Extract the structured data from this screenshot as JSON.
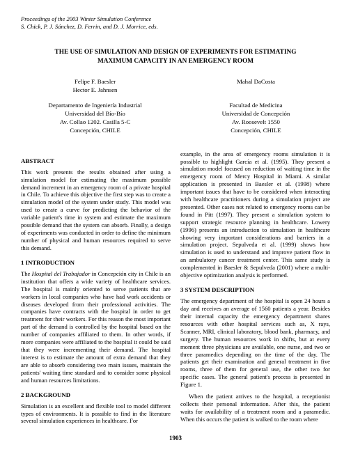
{
  "proceedings": {
    "line1": "Proceedings of the 2003 Winter Simulation Conference",
    "line2": "S. Chick, P. J. Sánchez, D. Ferrin, and D. J. Morrice, eds."
  },
  "title": {
    "line1": "THE USE OF SIMULATION AND DESIGN OF EXPERIMENTS FOR ESTIMATING",
    "line2": "MAXIMUM CAPACITY IN AN EMERGENCY ROOM"
  },
  "authors": {
    "left": [
      "Felipe F. Baesler",
      "Hector E. Jahnsen"
    ],
    "right": [
      "Mahal DaCosta"
    ]
  },
  "affil": {
    "left": [
      "Departamento de Ingeniería Industrial",
      "Universidad del Bío-Bío",
      "Av. Collao 1202. Casilla 5-C",
      "Concepción, CHILE"
    ],
    "right": [
      "Facultad de Medicina",
      "Universidad de Concepción",
      "Av. Roosevelt 1550",
      "Concepción, CHILE"
    ]
  },
  "left_col": {
    "abstract_head": "ABSTRACT",
    "abstract_body": "This work presents the results obtained after using a simulation model for estimating the maximum possible demand increment in an emergency room of a private hospital in Chile. To achieve this objective the first step was to create a simulation model of the system under study. This model was used to create a curve for predicting the behavior of the variable patient's time in system and estimate the maximum possible demand that the system can absorb. Finally, a design of experiments was conducted in order to define the minimum number of physical and human resources required to serve this demand.",
    "s1_head": "1   INTRODUCTION",
    "s1_body_pre": "The ",
    "s1_body_ital": "Hospital del Trabajador",
    "s1_body_post": " in Concepción city in Chile is an institution that offers a wide variety of healthcare services.  The hospital is mainly oriented to serve patients that are workers in local companies who have had work accidents or diseases developed from their professional activities. The companies have contracts with the hospital in order to get treatment for their workers. For this reason the most important part of the demand is controlled by the hospital based on the number of companies affiliated to them. In other words, if more companies were affiliated to the hospital it could be said that they were incrementing their demand. The hospital interest is to estimate the amount of extra demand that they are able to absorb considering two main issues, maintain the patients' waiting time standard and to consider some physical and human resources limitations.",
    "s2_head": "2   BACKGROUND",
    "s2_body": "Simulation is an excellent and flexible tool to model different types of environments. It is possible to find in the literature several simulation experiences in healthcare.  For"
  },
  "right_col": {
    "top_body": "example, in the area of emergency rooms simulation it is possible to highlight García et al. (1995). They present a simulation model focused on reduction of waiting time in the emergency room of Mercy Hospital in Miami. A similar application is presented in Baesler et al. (1998) where important issues that have to be considered when interacting with healthcare practitioners during a simulation project are presented. Other cases not related to emergency rooms can be found in Pitt (1997). They present a simulation system to support strategic resource planning in healthcare. Lowery (1996) presents an introduction to simulation in healthcare showing very important considerations and barriers in a simulation project. Sepulveda et al. (1999) shows how simulation is used to understand and improve patient flow in an ambulatory cancer treatment center. This same study is complemented in Baesler & Sepulveda (2001) where a multi-objective optimization analysis is performed.",
    "s3_head": "3   SYSTEM DESCRIPTION",
    "s3_body1": "The emergency department of the hospital is open 24 hours a day and receives an average of 1560 patients a year. Besides their internal capacity the emergency department shares resources with other hospital services such as, X rays, Scanner, MRI, clinical laboratory, blood bank, pharmacy, and surgery. The human resources work in shifts, but at every moment three physicians are available, one nurse, and two or three paramedics depending on the time of the day. The patients get their examination and general treatment in five rooms, three of them for general use, the other two for specific cases. The general patient's process is presented in Figure 1.",
    "s3_body2": "When the patient arrives to the hospital, a receptionist collects their personal information. After this, the patient waits for availability of a treatment room and a paramedic. When this occurs the patient is walked to the room where"
  },
  "pagenum": "1903"
}
